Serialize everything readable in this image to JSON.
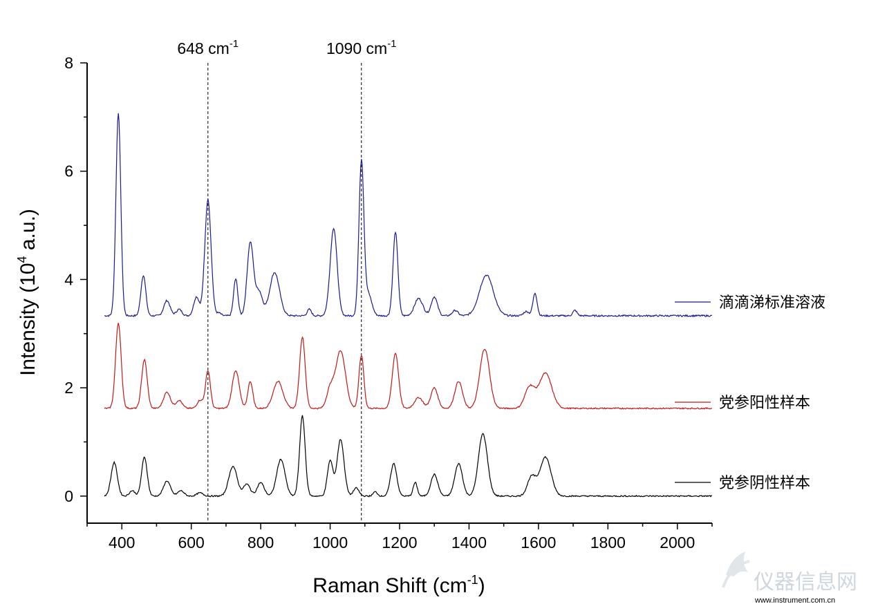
{
  "chart_data": {
    "type": "line",
    "title": "",
    "xlabel": "Raman Shift (cm",
    "xlabel_sup": "-1",
    "xlabel_tail": ")",
    "ylabel": "Intensity (10",
    "ylabel_sup": "4",
    "ylabel_tail": " a.u.)",
    "xlim": [
      300,
      2100
    ],
    "ylim": [
      -0.5,
      8
    ],
    "x_ticks": [
      400,
      600,
      800,
      1000,
      1200,
      1400,
      1600,
      1800,
      2000
    ],
    "y_ticks": [
      0,
      2,
      4,
      6,
      8
    ],
    "x_minor_step": 100,
    "y_minor_step": 1,
    "grid": false,
    "legend_position": "right",
    "annotations": [
      {
        "x": 648,
        "label": "648 cm",
        "sup": "-1"
      },
      {
        "x": 1090,
        "label": "1090 cm",
        "sup": "-1"
      }
    ],
    "series": [
      {
        "name": "滴滴涕标准溶液",
        "color": "#1a1a8c",
        "baseline": 3.33,
        "x_start": 350,
        "x_end": 2100,
        "peaks": [
          [
            390,
            3.75,
            7
          ],
          [
            462,
            0.75,
            7
          ],
          [
            530,
            0.28,
            9
          ],
          [
            565,
            0.12,
            8
          ],
          [
            615,
            0.35,
            8
          ],
          [
            648,
            2.15,
            9
          ],
          [
            680,
            0.05,
            6
          ],
          [
            728,
            0.68,
            6
          ],
          [
            770,
            1.35,
            9
          ],
          [
            795,
            0.45,
            10
          ],
          [
            840,
            0.8,
            14
          ],
          [
            940,
            0.12,
            6
          ],
          [
            1010,
            1.62,
            10
          ],
          [
            1090,
            2.85,
            7
          ],
          [
            1110,
            0.4,
            10
          ],
          [
            1188,
            1.55,
            7
          ],
          [
            1255,
            0.32,
            12
          ],
          [
            1300,
            0.35,
            9
          ],
          [
            1360,
            0.1,
            8
          ],
          [
            1450,
            0.75,
            20
          ],
          [
            1590,
            0.42,
            6
          ],
          [
            1565,
            0.08,
            8
          ],
          [
            1705,
            0.1,
            6
          ]
        ],
        "noise": 0.015
      },
      {
        "name": "党参阳性样本",
        "color": "#c01818",
        "baseline": 1.62,
        "x_start": 350,
        "x_end": 2100,
        "peaks": [
          [
            390,
            1.58,
            8
          ],
          [
            465,
            0.9,
            8
          ],
          [
            530,
            0.3,
            10
          ],
          [
            565,
            0.15,
            9
          ],
          [
            625,
            0.15,
            8
          ],
          [
            648,
            0.7,
            7
          ],
          [
            728,
            0.7,
            10
          ],
          [
            770,
            0.5,
            7
          ],
          [
            850,
            0.5,
            14
          ],
          [
            920,
            1.32,
            8
          ],
          [
            1030,
            1.07,
            14
          ],
          [
            1000,
            0.35,
            10
          ],
          [
            1090,
            0.98,
            7
          ],
          [
            1188,
            1.02,
            9
          ],
          [
            1255,
            0.2,
            12
          ],
          [
            1300,
            0.38,
            10
          ],
          [
            1370,
            0.5,
            11
          ],
          [
            1445,
            1.1,
            14
          ],
          [
            1575,
            0.4,
            14
          ],
          [
            1620,
            0.65,
            18
          ]
        ],
        "noise": 0.012
      },
      {
        "name": "党参阴性样本",
        "color": "#000000",
        "baseline": 0.0,
        "x_start": 350,
        "x_end": 2100,
        "peaks": [
          [
            378,
            0.62,
            9
          ],
          [
            430,
            0.1,
            8
          ],
          [
            465,
            0.72,
            8
          ],
          [
            530,
            0.28,
            10
          ],
          [
            570,
            0.1,
            9
          ],
          [
            625,
            0.06,
            9
          ],
          [
            720,
            0.55,
            12
          ],
          [
            760,
            0.22,
            10
          ],
          [
            800,
            0.25,
            10
          ],
          [
            858,
            0.68,
            12
          ],
          [
            920,
            1.48,
            8
          ],
          [
            1000,
            0.65,
            8
          ],
          [
            1030,
            1.05,
            10
          ],
          [
            1075,
            0.15,
            8
          ],
          [
            1130,
            0.08,
            6
          ],
          [
            1183,
            0.6,
            9
          ],
          [
            1245,
            0.25,
            6
          ],
          [
            1300,
            0.4,
            10
          ],
          [
            1370,
            0.6,
            11
          ],
          [
            1440,
            1.15,
            13
          ],
          [
            1580,
            0.35,
            12
          ],
          [
            1620,
            0.72,
            16
          ]
        ],
        "noise": 0.012
      }
    ]
  },
  "watermark": {
    "text": "仪器信息网",
    "subtext": "www.instrument.com.cn"
  }
}
